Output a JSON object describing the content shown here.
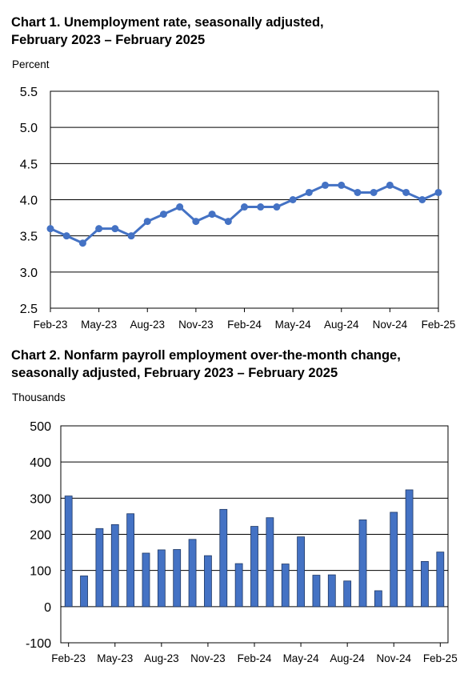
{
  "chart_data": [
    {
      "type": "line",
      "title": "Chart 1. Unemployment rate, seasonally adjusted,",
      "subtitle": "February 2023 – February 2025",
      "ylabel": "Percent",
      "ylim": [
        2.5,
        5.5
      ],
      "yticks": [
        "5.5",
        "5.0",
        "4.5",
        "4.0",
        "3.5",
        "3.0",
        "2.5"
      ],
      "xtick_labels": [
        "Feb-23",
        "May-23",
        "Aug-23",
        "Nov-23",
        "Feb-24",
        "May-24",
        "Aug-24",
        "Nov-24",
        "Feb-25"
      ],
      "x": [
        "Feb-23",
        "Mar-23",
        "Apr-23",
        "May-23",
        "Jun-23",
        "Jul-23",
        "Aug-23",
        "Sep-23",
        "Oct-23",
        "Nov-23",
        "Dec-23",
        "Jan-24",
        "Feb-24",
        "Mar-24",
        "Apr-24",
        "May-24",
        "Jun-24",
        "Jul-24",
        "Aug-24",
        "Sep-24",
        "Oct-24",
        "Nov-24",
        "Dec-24",
        "Jan-25",
        "Feb-25"
      ],
      "values": [
        3.6,
        3.5,
        3.4,
        3.6,
        3.6,
        3.5,
        3.7,
        3.8,
        3.9,
        3.7,
        3.8,
        3.7,
        3.9,
        3.9,
        3.9,
        4.0,
        4.1,
        4.2,
        4.2,
        4.1,
        4.1,
        4.2,
        4.1,
        4.0,
        4.1
      ],
      "grid": true,
      "color": "#4472C4"
    },
    {
      "type": "bar",
      "title": "Chart 2. Nonfarm payroll employment over-the-month change,",
      "subtitle": "seasonally adjusted, February 2023 – February 2025",
      "ylabel": "Thousands",
      "ylim": [
        -100,
        500
      ],
      "yticks": [
        "500",
        "400",
        "300",
        "200",
        "100",
        "0",
        "-100"
      ],
      "xtick_labels": [
        "Feb-23",
        "May-23",
        "Aug-23",
        "Nov-23",
        "Feb-24",
        "May-24",
        "Aug-24",
        "Nov-24",
        "Feb-25"
      ],
      "categories": [
        "Feb-23",
        "Mar-23",
        "Apr-23",
        "May-23",
        "Jun-23",
        "Jul-23",
        "Aug-23",
        "Sep-23",
        "Oct-23",
        "Nov-23",
        "Dec-23",
        "Jan-24",
        "Feb-24",
        "Mar-24",
        "Apr-24",
        "May-24",
        "Jun-24",
        "Jul-24",
        "Aug-24",
        "Sep-24",
        "Oct-24",
        "Nov-24",
        "Dec-24",
        "Jan-25",
        "Feb-25"
      ],
      "values": [
        306,
        85,
        216,
        227,
        257,
        148,
        157,
        158,
        186,
        141,
        269,
        119,
        222,
        246,
        118,
        193,
        87,
        88,
        71,
        240,
        44,
        261,
        323,
        125,
        151
      ],
      "grid": true,
      "color": "#4472C4"
    }
  ]
}
